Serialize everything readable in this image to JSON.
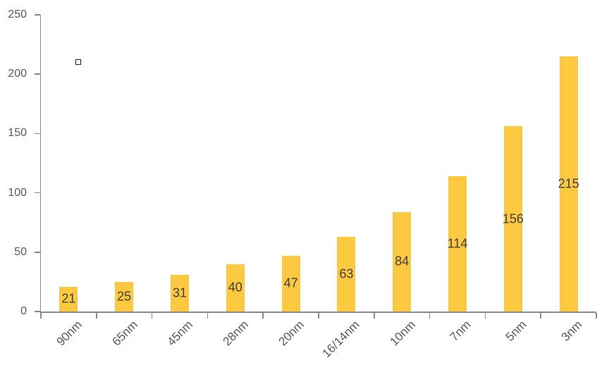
{
  "chart_data": {
    "type": "bar",
    "title": "",
    "xlabel": "",
    "ylabel": "",
    "categories": [
      "90nm",
      "65nm",
      "45nm",
      "28nm",
      "20nm",
      "16/14nm",
      "10nm",
      "7nm",
      "5nm",
      "3nm"
    ],
    "values": [
      21,
      25,
      31,
      40,
      47,
      63,
      84,
      114,
      156,
      215
    ],
    "ylim": [
      0,
      250
    ],
    "y_ticks": [
      0,
      50,
      100,
      150,
      200,
      250
    ],
    "grid": false,
    "legend_position": "none",
    "data_label_position": "inside-center",
    "x_label_rotation_deg": -45,
    "colors": {
      "bar_fill": "#FBC840",
      "value_label": "#3F3F3F",
      "axis_text": "#595959",
      "axis_line": "#8A8A8A",
      "background": "#FFFFFF",
      "marker_border": "#1F1F1F"
    },
    "annotations": [
      {
        "type": "small-empty-square-marker",
        "approx_value": 210,
        "text": ""
      }
    ]
  }
}
